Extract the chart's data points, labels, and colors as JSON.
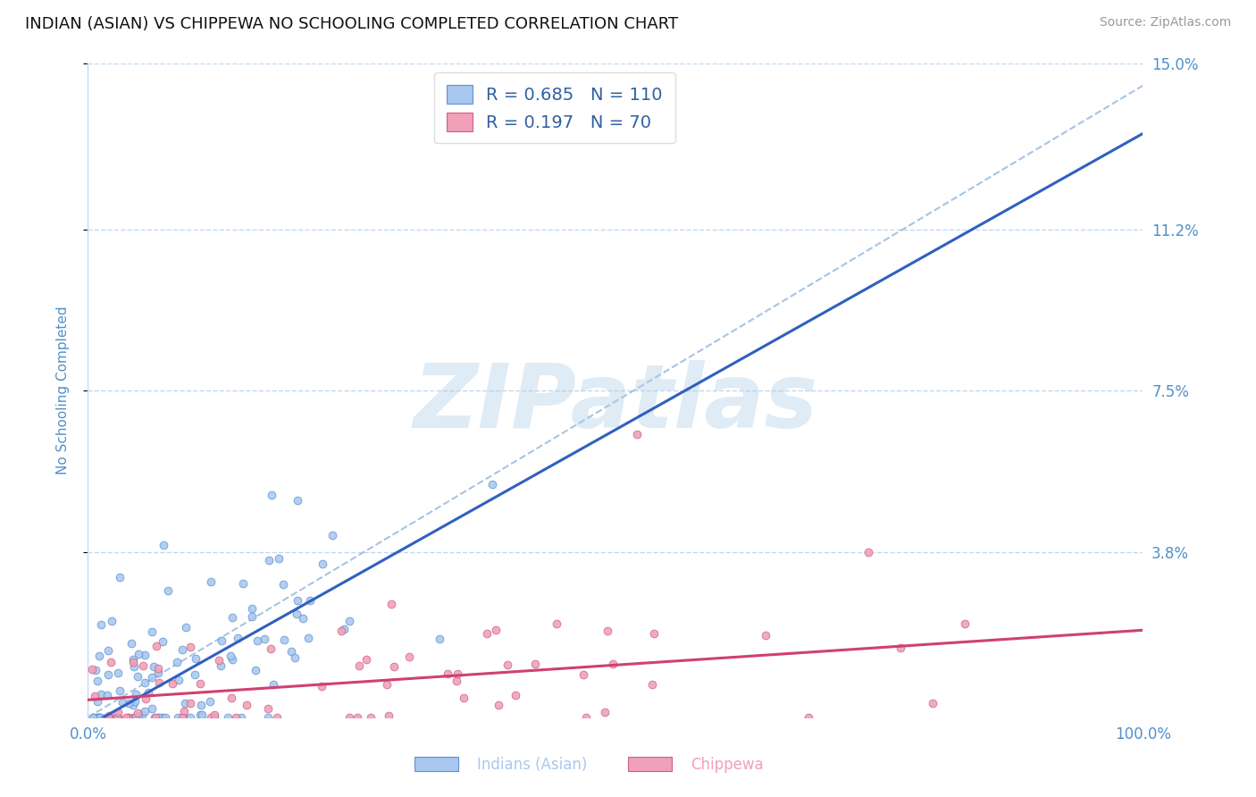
{
  "title": "INDIAN (ASIAN) VS CHIPPEWA NO SCHOOLING COMPLETED CORRELATION CHART",
  "source_text": "Source: ZipAtlas.com",
  "ylabel": "No Schooling Completed",
  "legend_labels": [
    "Indians (Asian)",
    "Chippewa"
  ],
  "legend_r_n": [
    {
      "r": "0.685",
      "n": "110"
    },
    {
      "r": "0.197",
      "n": "70"
    }
  ],
  "xlim": [
    0.0,
    1.0
  ],
  "ylim": [
    0.0,
    0.15
  ],
  "ytick_values": [
    0.038,
    0.075,
    0.112,
    0.15
  ],
  "ytick_labels": [
    "3.8%",
    "7.5%",
    "11.2%",
    "15.0%"
  ],
  "xtick_labels": [
    "0.0%",
    "100.0%"
  ],
  "xticks": [
    0.0,
    1.0
  ],
  "blue_fill": "#A8C8F0",
  "blue_edge": "#6090D0",
  "pink_fill": "#F0A0B8",
  "pink_edge": "#D06080",
  "blue_line": "#3060C0",
  "pink_line": "#D04070",
  "dashed_line": "#8AB0D8",
  "axis_label_color": "#5090C8",
  "grid_color": "#C0D8F0",
  "watermark": "ZIPatlas",
  "watermark_color": "#B0CEE8",
  "background_color": "#FFFFFF",
  "title_fontsize": 13,
  "source_fontsize": 10,
  "blue_slope": 0.136,
  "blue_intercept": -0.002,
  "pink_slope": 0.016,
  "pink_intercept": 0.004,
  "dashed_slope": 0.145,
  "dashed_intercept": 0.0
}
